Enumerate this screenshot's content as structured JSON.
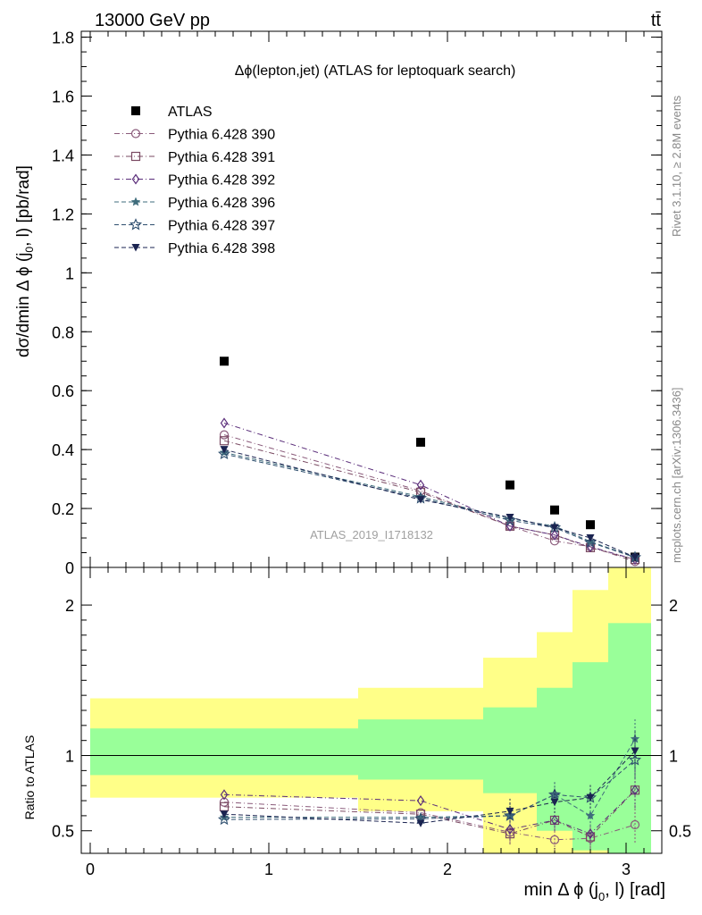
{
  "header": {
    "left": "13000 GeV pp",
    "right": "tt̄"
  },
  "side_labels": {
    "rivet": "Rivet 3.1.10, ≥ 2.8M events",
    "mcplots": "mcplots.cern.ch [arXiv:1306.3436]"
  },
  "watermark": "ATLAS_2019_I1718132",
  "colors": {
    "data": "#000000",
    "p390": "#8a5a7a",
    "p391": "#7a4a62",
    "p392": "#5a2d7a",
    "p396": "#3f6d7c",
    "p397": "#2f4f6f",
    "p398": "#1a2350",
    "band_green": "#99ff99",
    "band_yellow": "#ffff88"
  },
  "chart_data": [
    {
      "type": "scatter",
      "title": "Δϕ(lepton,jet) (ATLAS for leptoquark search)",
      "ylabel": "dσ/dmin Δ ϕ (j0, l) [pb/rad]",
      "ylim": [
        0,
        1.82
      ],
      "xlim": [
        -0.05,
        3.2
      ],
      "y_ticks": [
        "0",
        "0.2",
        "0.4",
        "0.6",
        "0.8",
        "1",
        "1.2",
        "1.4",
        "1.6",
        "1.8"
      ],
      "legend_position": "top-left",
      "x": [
        0.75,
        1.85,
        2.35,
        2.6,
        2.8,
        3.05
      ],
      "series": [
        {
          "name": "ATLAS",
          "key": "data",
          "marker": "square",
          "values": [
            0.7,
            0.425,
            0.28,
            0.195,
            0.145,
            0.035
          ]
        },
        {
          "name": "Pythia 6.428 390",
          "key": "p390",
          "marker": "circle",
          "values": [
            0.45,
            0.26,
            0.14,
            0.09,
            0.07,
            0.02
          ]
        },
        {
          "name": "Pythia 6.428 391",
          "key": "p391",
          "marker": "square-open",
          "values": [
            0.43,
            0.255,
            0.14,
            0.11,
            0.067,
            0.027
          ]
        },
        {
          "name": "Pythia 6.428 392",
          "key": "p392",
          "marker": "diamond",
          "values": [
            0.49,
            0.28,
            0.14,
            0.11,
            0.07,
            0.027
          ]
        },
        {
          "name": "Pythia 6.428 396",
          "key": "p396",
          "marker": "star-filled",
          "values": [
            0.39,
            0.24,
            0.165,
            0.14,
            0.088,
            0.035
          ]
        },
        {
          "name": "Pythia 6.428 397",
          "key": "p397",
          "marker": "star-open",
          "values": [
            0.385,
            0.235,
            0.16,
            0.135,
            0.085,
            0.034
          ]
        },
        {
          "name": "Pythia 6.428 398",
          "key": "p398",
          "marker": "triangle-down",
          "values": [
            0.4,
            0.23,
            0.17,
            0.135,
            0.1,
            0.035
          ]
        }
      ]
    },
    {
      "type": "scatter",
      "ylabel": "Ratio to ATLAS",
      "xlabel": "min Δ ϕ (j0, l) [rad]",
      "ylim": [
        0.35,
        2.25
      ],
      "xlim": [
        -0.05,
        3.2
      ],
      "y_ticks": [
        "0.5",
        "1",
        "2"
      ],
      "x_ticks": [
        "0",
        "1",
        "2",
        "3"
      ],
      "reference_line": 1,
      "bands": {
        "edges": [
          0,
          1.5,
          2.2,
          2.5,
          2.7,
          2.9,
          3.14
        ],
        "green": [
          [
            0.87,
            1.18
          ],
          [
            0.84,
            1.24
          ],
          [
            0.75,
            1.32
          ],
          [
            0.5,
            1.45
          ],
          [
            0.37,
            1.62
          ],
          [
            0.3,
            1.88
          ]
        ],
        "yellow": [
          [
            0.72,
            1.38
          ],
          [
            0.63,
            1.45
          ],
          [
            0.35,
            1.65
          ],
          [
            0.35,
            1.82
          ],
          [
            0.35,
            2.1
          ],
          [
            0.35,
            2.3
          ]
        ]
      },
      "series": [
        {
          "name": "Pythia 6.428 390",
          "key": "p390",
          "marker": "circle",
          "values": [
            0.69,
            0.62,
            0.49,
            0.44,
            0.45,
            0.54
          ]
        },
        {
          "name": "Pythia 6.428 391",
          "key": "p391",
          "marker": "square-open",
          "values": [
            0.66,
            0.61,
            0.48,
            0.57,
            0.46,
            0.77
          ]
        },
        {
          "name": "Pythia 6.428 392",
          "key": "p392",
          "marker": "diamond",
          "values": [
            0.74,
            0.7,
            0.51,
            0.57,
            0.48,
            0.77
          ]
        },
        {
          "name": "Pythia 6.428 396",
          "key": "p396",
          "marker": "star-filled",
          "values": [
            0.59,
            0.59,
            0.6,
            0.74,
            0.6,
            1.11
          ]
        },
        {
          "name": "Pythia 6.428 397",
          "key": "p397",
          "marker": "star-open",
          "values": [
            0.575,
            0.58,
            0.6,
            0.74,
            0.72,
            0.97
          ]
        },
        {
          "name": "Pythia 6.428 398",
          "key": "p398",
          "marker": "triangle-down",
          "values": [
            0.61,
            0.55,
            0.63,
            0.69,
            0.72,
            1.03
          ]
        }
      ]
    }
  ]
}
